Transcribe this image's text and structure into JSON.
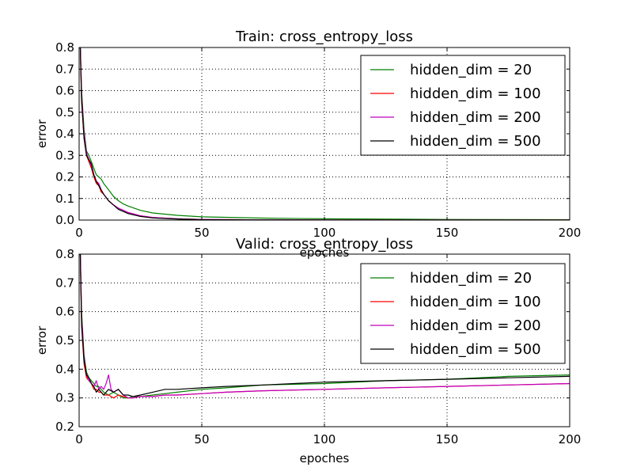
{
  "chart_data": [
    {
      "type": "line",
      "title": "Train: cross_entropy_loss",
      "xlabel": "epoches",
      "ylabel": "error",
      "xlim": [
        0,
        200
      ],
      "ylim": [
        0.0,
        0.8
      ],
      "xticks": [
        "0",
        "50",
        "100",
        "150",
        "200"
      ],
      "yticks": [
        "0.0",
        "0.1",
        "0.2",
        "0.3",
        "0.4",
        "0.5",
        "0.6",
        "0.7",
        "0.8"
      ],
      "grid": true,
      "legend_position": "top-right",
      "series": [
        {
          "name": "hidden_dim = 20",
          "color": "#008000",
          "x": [
            0.5,
            1,
            2,
            3,
            4,
            5,
            6,
            7,
            8,
            9,
            10,
            12,
            14,
            16,
            18,
            20,
            25,
            30,
            40,
            50,
            75,
            100,
            150,
            200
          ],
          "y": [
            0.8,
            0.6,
            0.42,
            0.32,
            0.3,
            0.27,
            0.24,
            0.21,
            0.2,
            0.19,
            0.17,
            0.14,
            0.11,
            0.09,
            0.075,
            0.065,
            0.045,
            0.033,
            0.022,
            0.015,
            0.009,
            0.006,
            0.003,
            0.002
          ]
        },
        {
          "name": "hidden_dim = 100",
          "color": "#ff0000",
          "x": [
            0.5,
            1,
            2,
            3,
            4,
            5,
            6,
            7,
            8,
            9,
            10,
            12,
            14,
            16,
            18,
            20,
            25,
            30,
            40,
            50,
            75,
            100,
            150,
            200
          ],
          "y": [
            0.8,
            0.55,
            0.38,
            0.3,
            0.27,
            0.24,
            0.2,
            0.17,
            0.16,
            0.13,
            0.12,
            0.09,
            0.07,
            0.055,
            0.045,
            0.035,
            0.02,
            0.012,
            0.006,
            0.003,
            0.001,
            0.0,
            0.0,
            0.0
          ]
        },
        {
          "name": "hidden_dim = 200",
          "color": "#bf00bf",
          "x": [
            0.5,
            1,
            2,
            3,
            4,
            5,
            6,
            7,
            8,
            9,
            10,
            12,
            14,
            16,
            18,
            20,
            25,
            30,
            40,
            50,
            75,
            100,
            150,
            200
          ],
          "y": [
            0.8,
            0.58,
            0.4,
            0.31,
            0.28,
            0.25,
            0.21,
            0.18,
            0.17,
            0.14,
            0.12,
            0.09,
            0.07,
            0.055,
            0.045,
            0.035,
            0.02,
            0.012,
            0.006,
            0.003,
            0.001,
            0.0,
            0.0,
            0.0
          ]
        },
        {
          "name": "hidden_dim = 500",
          "color": "#000000",
          "x": [
            0.5,
            1,
            2,
            3,
            4,
            5,
            6,
            7,
            8,
            9,
            10,
            12,
            14,
            16,
            18,
            20,
            25,
            30,
            40,
            50,
            75,
            100,
            150,
            200
          ],
          "y": [
            0.8,
            0.56,
            0.38,
            0.3,
            0.28,
            0.26,
            0.21,
            0.18,
            0.16,
            0.14,
            0.12,
            0.09,
            0.07,
            0.05,
            0.04,
            0.03,
            0.017,
            0.01,
            0.005,
            0.002,
            0.001,
            0.0,
            0.0,
            0.0
          ]
        }
      ]
    },
    {
      "type": "line",
      "title": "Valid: cross_entropy_loss",
      "xlabel": "epoches",
      "ylabel": "error",
      "xlim": [
        0,
        200
      ],
      "ylim": [
        0.2,
        0.8
      ],
      "xticks": [
        "0",
        "50",
        "100",
        "150",
        "200"
      ],
      "yticks": [
        "0.2",
        "0.3",
        "0.4",
        "0.5",
        "0.6",
        "0.7",
        "0.8"
      ],
      "grid": true,
      "legend_position": "top-right",
      "series": [
        {
          "name": "hidden_dim = 20",
          "color": "#008000",
          "x": [
            0.5,
            1,
            2,
            3,
            4,
            5,
            6,
            7,
            8,
            9,
            10,
            12,
            14,
            16,
            18,
            20,
            22,
            25,
            30,
            35,
            40,
            50,
            60,
            75,
            100,
            125,
            150,
            175,
            200
          ],
          "y": [
            0.8,
            0.6,
            0.45,
            0.39,
            0.37,
            0.36,
            0.35,
            0.34,
            0.34,
            0.33,
            0.32,
            0.31,
            0.32,
            0.31,
            0.3,
            0.3,
            0.305,
            0.305,
            0.31,
            0.315,
            0.32,
            0.33,
            0.335,
            0.345,
            0.35,
            0.36,
            0.365,
            0.375,
            0.38
          ]
        },
        {
          "name": "hidden_dim = 100",
          "color": "#ff0000",
          "x": [
            0.5,
            1,
            2,
            3,
            4,
            5,
            6,
            7,
            8,
            9,
            10,
            12,
            14,
            16,
            18,
            20,
            22,
            25,
            30,
            35,
            40,
            50,
            60,
            75,
            100,
            125,
            150,
            175,
            200
          ],
          "y": [
            0.8,
            0.55,
            0.42,
            0.37,
            0.36,
            0.35,
            0.33,
            0.33,
            0.32,
            0.32,
            0.31,
            0.31,
            0.3,
            0.31,
            0.305,
            0.3,
            0.3,
            0.305,
            0.305,
            0.31,
            0.31,
            0.315,
            0.32,
            0.325,
            0.33,
            0.335,
            0.34,
            0.345,
            0.35
          ]
        },
        {
          "name": "hidden_dim = 200",
          "color": "#bf00bf",
          "x": [
            0.5,
            1,
            2,
            3,
            4,
            5,
            6,
            7,
            8,
            9,
            10,
            11,
            12,
            13,
            14,
            16,
            18,
            20,
            22,
            25,
            30,
            35,
            40,
            50,
            60,
            75,
            100,
            125,
            150,
            175,
            200
          ],
          "y": [
            0.8,
            0.58,
            0.44,
            0.38,
            0.36,
            0.35,
            0.34,
            0.36,
            0.33,
            0.34,
            0.33,
            0.35,
            0.38,
            0.33,
            0.32,
            0.33,
            0.31,
            0.3,
            0.3,
            0.305,
            0.305,
            0.31,
            0.31,
            0.315,
            0.32,
            0.325,
            0.33,
            0.335,
            0.34,
            0.345,
            0.35
          ]
        },
        {
          "name": "hidden_dim = 500",
          "color": "#000000",
          "x": [
            0.5,
            1,
            2,
            3,
            4,
            5,
            6,
            7,
            8,
            9,
            10,
            12,
            14,
            16,
            18,
            20,
            22,
            25,
            30,
            35,
            40,
            50,
            60,
            75,
            100,
            125,
            150,
            175,
            200
          ],
          "y": [
            0.8,
            0.56,
            0.43,
            0.38,
            0.37,
            0.35,
            0.34,
            0.32,
            0.33,
            0.32,
            0.31,
            0.33,
            0.32,
            0.33,
            0.31,
            0.31,
            0.305,
            0.31,
            0.32,
            0.33,
            0.33,
            0.335,
            0.34,
            0.345,
            0.355,
            0.36,
            0.365,
            0.37,
            0.375
          ]
        }
      ]
    }
  ]
}
